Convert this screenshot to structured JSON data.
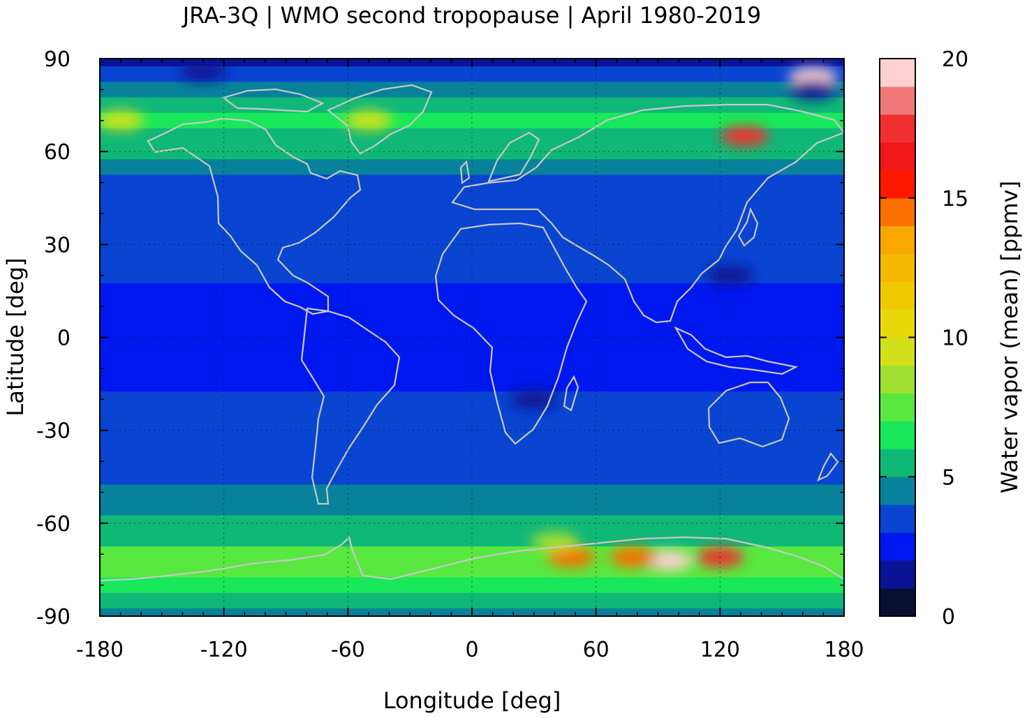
{
  "chart_data": {
    "type": "heatmap",
    "title": "JRA-3Q | WMO second tropopause | April 1980-2019",
    "xlabel": "Longitude [deg]",
    "ylabel": "Latitude [deg]",
    "colorbar_label": "Water vapor (mean) [ppmv]",
    "xlim": [
      -180,
      180
    ],
    "ylim": [
      -90,
      90
    ],
    "x_ticks": [
      -180,
      -120,
      -60,
      0,
      60,
      120,
      180
    ],
    "x_tick_labels": [
      "-180",
      "-120",
      "-60",
      "0",
      "60",
      "120",
      "180"
    ],
    "y_ticks": [
      90,
      60,
      30,
      0,
      -30,
      -60,
      -90
    ],
    "y_tick_labels": [
      "90",
      "60",
      "30",
      "0",
      "-30",
      "-60",
      "-90"
    ],
    "colorbar_range": [
      0,
      20
    ],
    "colorbar_ticks": [
      20,
      15,
      10,
      5,
      0
    ],
    "colorbar_tick_labels": [
      "20",
      "15",
      "10",
      "5",
      "0"
    ],
    "grid": true,
    "coastlines": true,
    "colorbar_colors": [
      "#0a0f33",
      "#0a1394",
      "#0018f0",
      "#0a45d2",
      "#08829a",
      "#10b878",
      "#18e85a",
      "#58e840",
      "#a0e030",
      "#d2e01a",
      "#e8d80a",
      "#f0c800",
      "#f5b800",
      "#f8a800",
      "#fc7000",
      "#ff1800",
      "#f01818",
      "#f03030",
      "#f07878",
      "#ffd0d0"
    ],
    "zonal_mean_profile": {
      "latitudes": [
        90,
        85,
        80,
        75,
        70,
        65,
        60,
        55,
        50,
        45,
        40,
        35,
        30,
        25,
        20,
        15,
        10,
        5,
        0,
        -5,
        -10,
        -15,
        -20,
        -25,
        -30,
        -35,
        -40,
        -45,
        -50,
        -55,
        -60,
        -65,
        -70,
        -75,
        -80,
        -85,
        -90
      ],
      "values": [
        1.5,
        3.0,
        4.5,
        5.5,
        6.5,
        5.8,
        5.0,
        4.3,
        3.8,
        3.6,
        3.5,
        3.5,
        3.4,
        3.3,
        3.0,
        2.6,
        2.4,
        2.4,
        2.4,
        2.5,
        2.6,
        2.8,
        3.0,
        3.3,
        3.5,
        3.6,
        3.7,
        3.8,
        4.0,
        4.4,
        5.0,
        5.8,
        7.0,
        7.5,
        6.0,
        5.0,
        4.5
      ]
    },
    "hotspots": [
      {
        "lon": 95,
        "lat": -72,
        "value": 20
      },
      {
        "lon": 120,
        "lat": -71,
        "value": 17
      },
      {
        "lon": 78,
        "lat": -71,
        "value": 14
      },
      {
        "lon": 48,
        "lat": -71,
        "value": 14
      },
      {
        "lon": 132,
        "lat": 65,
        "value": 17
      },
      {
        "lon": 165,
        "lat": 84,
        "value": 20
      },
      {
        "lon": -50,
        "lat": 70,
        "value": 9
      },
      {
        "lon": -170,
        "lat": 70,
        "value": 9
      },
      {
        "lon": 40,
        "lat": -66,
        "value": 8
      }
    ],
    "lowspots": [
      {
        "lon": -130,
        "lat": 86,
        "value": 1
      },
      {
        "lon": 165,
        "lat": 80,
        "value": 1
      },
      {
        "lon": 30,
        "lat": -20,
        "value": 1
      },
      {
        "lon": 125,
        "lat": 20,
        "value": 1
      }
    ]
  }
}
